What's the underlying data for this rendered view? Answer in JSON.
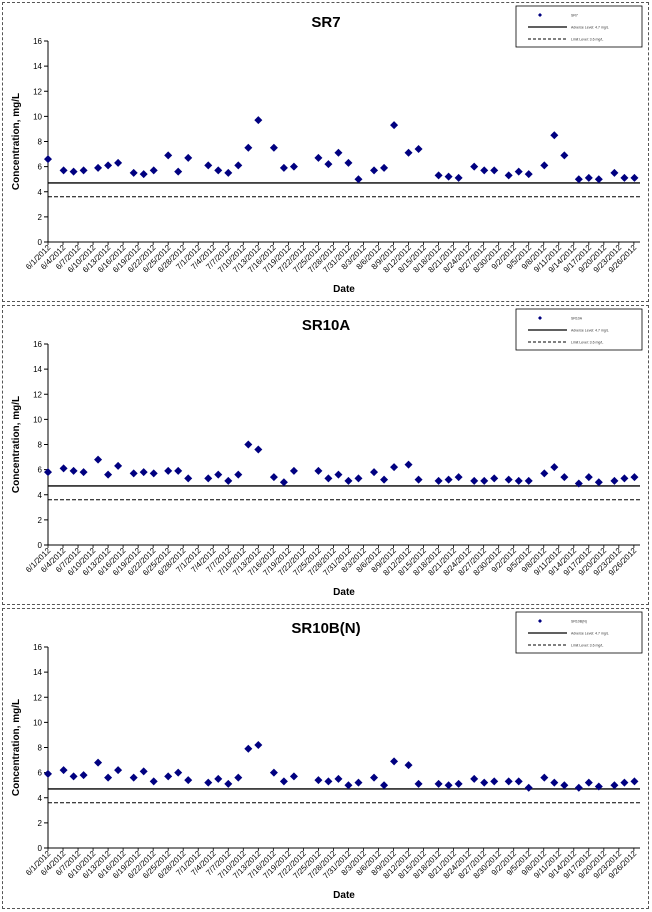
{
  "charts": [
    {
      "title": "SR7",
      "legend": [
        "SR7",
        "Adverse Level: 4.7 mg/L",
        "Limit Level: 3.6 mg/L"
      ],
      "points": [
        [
          0,
          6.6
        ],
        [
          1.4,
          5.7
        ],
        [
          2.3,
          5.6
        ],
        [
          3.2,
          5.7
        ],
        [
          4.5,
          5.9
        ],
        [
          5.4,
          6.1
        ],
        [
          6.3,
          6.3
        ],
        [
          7.7,
          5.5
        ],
        [
          8.6,
          5.4
        ],
        [
          9.5,
          5.7
        ],
        [
          10.8,
          6.9
        ],
        [
          11.7,
          5.6
        ],
        [
          12.6,
          6.7
        ],
        [
          14.4,
          6.1
        ],
        [
          15.3,
          5.7
        ],
        [
          16.2,
          5.5
        ],
        [
          17.1,
          6.1
        ],
        [
          18,
          7.5
        ],
        [
          18.9,
          9.7
        ],
        [
          20.3,
          7.5
        ],
        [
          21.2,
          5.9
        ],
        [
          22.1,
          6
        ],
        [
          24.3,
          6.7
        ],
        [
          25.2,
          6.2
        ],
        [
          26.1,
          7.1
        ],
        [
          27,
          6.3
        ],
        [
          27.9,
          5
        ],
        [
          29.3,
          5.7
        ],
        [
          30.2,
          5.9
        ],
        [
          31.1,
          9.3
        ],
        [
          32.4,
          7.1
        ],
        [
          33.3,
          7.4
        ],
        [
          35.1,
          5.3
        ],
        [
          36,
          5.2
        ],
        [
          36.9,
          5.1
        ],
        [
          38.3,
          6
        ],
        [
          39.2,
          5.7
        ],
        [
          40.1,
          5.7
        ],
        [
          41.4,
          5.3
        ],
        [
          42.3,
          5.6
        ],
        [
          43.2,
          5.4
        ],
        [
          44.6,
          6.1
        ],
        [
          45.5,
          8.5
        ],
        [
          46.4,
          6.9
        ],
        [
          47.7,
          5
        ],
        [
          48.6,
          5.1
        ],
        [
          49.5,
          5
        ],
        [
          50.9,
          5.5
        ],
        [
          51.8,
          5.1
        ],
        [
          52.7,
          5.1
        ]
      ],
      "y_positions": [
        20,
        221
      ]
    },
    {
      "title": "SR10A",
      "legend": [
        "SR10A",
        "Adverse Level: 4.7 mg/L",
        "Limit Level: 3.6 mg/L"
      ],
      "points": [
        [
          0,
          5.8
        ],
        [
          1.4,
          6.1
        ],
        [
          2.3,
          5.9
        ],
        [
          3.2,
          5.8
        ],
        [
          4.5,
          6.8
        ],
        [
          5.4,
          5.6
        ],
        [
          6.3,
          6.3
        ],
        [
          7.7,
          5.7
        ],
        [
          8.6,
          5.8
        ],
        [
          9.5,
          5.7
        ],
        [
          10.8,
          5.9
        ],
        [
          11.7,
          5.9
        ],
        [
          12.6,
          5.3
        ],
        [
          14.4,
          5.3
        ],
        [
          15.3,
          5.6
        ],
        [
          16.2,
          5.1
        ],
        [
          17.1,
          5.6
        ],
        [
          18,
          8
        ],
        [
          18.9,
          7.6
        ],
        [
          20.3,
          5.4
        ],
        [
          21.2,
          5
        ],
        [
          22.1,
          5.9
        ],
        [
          24.3,
          5.9
        ],
        [
          25.2,
          5.3
        ],
        [
          26.1,
          5.6
        ],
        [
          27,
          5.1
        ],
        [
          27.9,
          5.3
        ],
        [
          29.3,
          5.8
        ],
        [
          30.2,
          5.2
        ],
        [
          31.1,
          6.2
        ],
        [
          32.4,
          6.4
        ],
        [
          33.3,
          5.2
        ],
        [
          35.1,
          5.1
        ],
        [
          36,
          5.2
        ],
        [
          36.9,
          5.4
        ],
        [
          38.3,
          5.1
        ],
        [
          39.2,
          5.1
        ],
        [
          40.1,
          5.3
        ],
        [
          41.4,
          5.2
        ],
        [
          42.3,
          5.1
        ],
        [
          43.2,
          5.1
        ],
        [
          44.6,
          5.7
        ],
        [
          45.5,
          6.2
        ],
        [
          46.4,
          5.4
        ],
        [
          47.7,
          4.9
        ],
        [
          48.6,
          5.4
        ],
        [
          49.5,
          5
        ],
        [
          50.9,
          5.1
        ],
        [
          51.8,
          5.3
        ],
        [
          52.7,
          5.4
        ]
      ]
    },
    {
      "title": "SR10B(N)",
      "legend": [
        "SR10B(N)",
        "Adverse Level: 4.7 mg/L",
        "Limit Level: 3.6 mg/L"
      ],
      "points": [
        [
          0,
          5.9
        ],
        [
          1.4,
          6.2
        ],
        [
          2.3,
          5.7
        ],
        [
          3.2,
          5.8
        ],
        [
          4.5,
          6.8
        ],
        [
          5.4,
          5.6
        ],
        [
          6.3,
          6.2
        ],
        [
          7.7,
          5.6
        ],
        [
          8.6,
          6.1
        ],
        [
          9.5,
          5.3
        ],
        [
          10.8,
          5.7
        ],
        [
          11.7,
          6
        ],
        [
          12.6,
          5.4
        ],
        [
          14.4,
          5.2
        ],
        [
          15.3,
          5.5
        ],
        [
          16.2,
          5.1
        ],
        [
          17.1,
          5.6
        ],
        [
          18,
          7.9
        ],
        [
          18.9,
          8.2
        ],
        [
          20.3,
          6
        ],
        [
          21.2,
          5.3
        ],
        [
          22.1,
          5.7
        ],
        [
          24.3,
          5.4
        ],
        [
          25.2,
          5.3
        ],
        [
          26.1,
          5.5
        ],
        [
          27,
          5
        ],
        [
          27.9,
          5.2
        ],
        [
          29.3,
          5.6
        ],
        [
          30.2,
          5
        ],
        [
          31.1,
          6.9
        ],
        [
          32.4,
          6.6
        ],
        [
          33.3,
          5.1
        ],
        [
          35.1,
          5.1
        ],
        [
          36,
          5
        ],
        [
          36.9,
          5.1
        ],
        [
          38.3,
          5.5
        ],
        [
          39.2,
          5.2
        ],
        [
          40.1,
          5.3
        ],
        [
          41.4,
          5.3
        ],
        [
          42.3,
          5.3
        ],
        [
          43.2,
          4.8
        ],
        [
          44.6,
          5.6
        ],
        [
          45.5,
          5.2
        ],
        [
          46.4,
          5
        ],
        [
          47.7,
          4.8
        ],
        [
          48.6,
          5.2
        ],
        [
          49.5,
          4.9
        ],
        [
          50.9,
          5
        ],
        [
          51.8,
          5.2
        ],
        [
          52.7,
          5.3
        ]
      ]
    }
  ],
  "shared": {
    "ylabel": "Concentration, mg/L",
    "xlabel": "Date",
    "yticks": [
      "0",
      "2",
      "4",
      "6",
      "8",
      "10",
      "12",
      "14",
      "16"
    ],
    "xticks": [
      "6/1/2012",
      "6/4/2012",
      "6/7/2012",
      "6/10/2012",
      "6/13/2012",
      "6/16/2012",
      "6/19/2012",
      "6/22/2012",
      "6/25/2012",
      "6/28/2012",
      "7/1/2012",
      "7/4/2012",
      "7/7/2012",
      "7/10/2012",
      "7/13/2012",
      "7/16/2012",
      "7/19/2012",
      "7/22/2012",
      "7/25/2012",
      "7/28/2012",
      "7/31/2012",
      "8/3/2012",
      "8/6/2012",
      "8/9/2012",
      "8/12/2012",
      "8/15/2012",
      "8/18/2012",
      "8/21/2012",
      "8/24/2012",
      "8/27/2012",
      "8/30/2012",
      "9/2/2012",
      "9/5/2012",
      "9/8/2012",
      "9/11/2012",
      "9/14/2012",
      "9/17/2012",
      "9/20/2012",
      "9/23/2012",
      "9/26/2012"
    ],
    "adverse_level": 4.7,
    "limit_level": 3.6,
    "ylim": [
      0,
      16
    ],
    "marker_color": "#000080"
  },
  "chart_data": [
    {
      "type": "scatter",
      "title": "SR7",
      "xlabel": "Date",
      "ylabel": "Concentration, mg/L",
      "ylim": [
        0,
        16
      ],
      "series": [
        {
          "name": "SR7"
        },
        {
          "name": "Adverse Level: 4.7 mg/L",
          "value": 4.7
        },
        {
          "name": "Limit Level: 3.6 mg/L",
          "value": 3.6
        }
      ],
      "legend": "top-right"
    },
    {
      "type": "scatter",
      "title": "SR10A",
      "xlabel": "Date",
      "ylabel": "Concentration, mg/L",
      "ylim": [
        0,
        16
      ],
      "series": [
        {
          "name": "SR10A"
        },
        {
          "name": "Adverse Level: 4.7 mg/L",
          "value": 4.7
        },
        {
          "name": "Limit Level: 3.6 mg/L",
          "value": 3.6
        }
      ],
      "legend": "top-right"
    },
    {
      "type": "scatter",
      "title": "SR10B(N)",
      "xlabel": "Date",
      "ylabel": "Concentration, mg/L",
      "ylim": [
        0,
        16
      ],
      "series": [
        {
          "name": "SR10B(N)"
        },
        {
          "name": "Adverse Level: 4.7 mg/L",
          "value": 4.7
        },
        {
          "name": "Limit Level: 3.6 mg/L",
          "value": 3.6
        }
      ],
      "legend": "top-right"
    }
  ]
}
